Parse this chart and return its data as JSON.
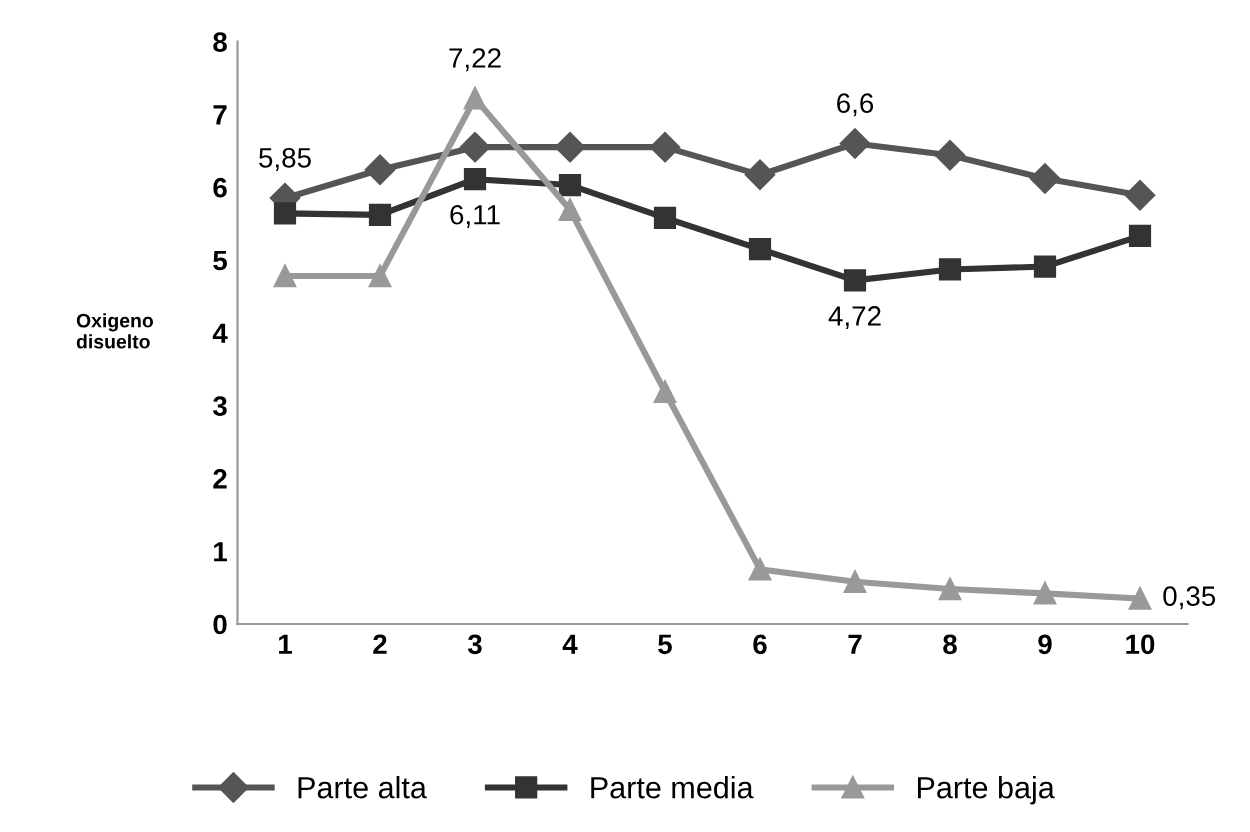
{
  "chart_data": {
    "type": "line",
    "ylabel": "Oxigeno\ndisuelto",
    "categories": [
      "1",
      "2",
      "3",
      "4",
      "5",
      "6",
      "7",
      "8",
      "9",
      "10"
    ],
    "series": [
      {
        "name": "Parte alta",
        "color": "#555555",
        "marker": "diamond",
        "values": [
          5.85,
          6.24,
          6.55,
          6.55,
          6.55,
          6.17,
          6.6,
          6.44,
          6.12,
          5.89
        ],
        "value_labels": [
          "5,85",
          null,
          null,
          null,
          null,
          null,
          "6,6",
          null,
          null,
          null
        ]
      },
      {
        "name": "Parte media",
        "color": "#333333",
        "marker": "square",
        "values": [
          5.64,
          5.62,
          6.11,
          6.03,
          5.58,
          5.15,
          4.72,
          4.87,
          4.91,
          5.33
        ],
        "value_labels": [
          null,
          null,
          "6,11",
          null,
          null,
          null,
          "4,72",
          null,
          null,
          null
        ]
      },
      {
        "name": "Parte baja",
        "color": "#999999",
        "marker": "triangle",
        "values": [
          4.78,
          4.78,
          7.22,
          5.69,
          3.19,
          0.75,
          0.58,
          0.48,
          0.42,
          0.35
        ],
        "value_labels": [
          null,
          null,
          "7,22",
          null,
          null,
          null,
          null,
          null,
          null,
          "0,35"
        ]
      }
    ],
    "ylim": [
      0,
      8
    ],
    "yticks": [
      0,
      1,
      2,
      3,
      4,
      5,
      6,
      7,
      8
    ],
    "grid": false,
    "legend": "bottom"
  }
}
